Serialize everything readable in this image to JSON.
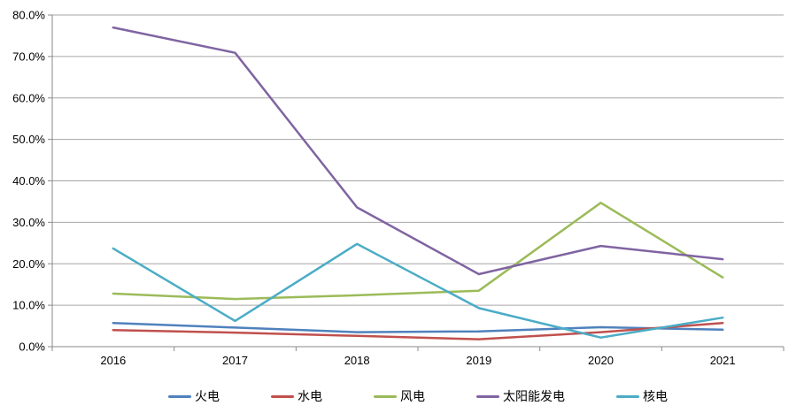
{
  "chart_data": {
    "type": "line",
    "title": "",
    "xlabel": "",
    "ylabel": "",
    "categories": [
      "2016",
      "2017",
      "2018",
      "2019",
      "2020",
      "2021"
    ],
    "series": [
      {
        "id": "thermal-power",
        "name": "火电",
        "color": "#4F81BD",
        "values": [
          5.7,
          4.6,
          3.5,
          3.7,
          4.7,
          4.1
        ]
      },
      {
        "id": "hydro-power",
        "name": "水电",
        "color": "#C0504D",
        "values": [
          4.0,
          3.4,
          2.6,
          1.8,
          3.5,
          5.7
        ]
      },
      {
        "id": "wind-power",
        "name": "风电",
        "color": "#9BBB59",
        "values": [
          12.8,
          11.5,
          12.4,
          13.5,
          34.7,
          16.7
        ]
      },
      {
        "id": "solar-power",
        "name": "太阳能发电",
        "color": "#8064A2",
        "values": [
          77.0,
          70.9,
          33.6,
          17.5,
          24.3,
          21.1
        ]
      },
      {
        "id": "nuclear-power",
        "name": "核电",
        "color": "#4BACC6",
        "values": [
          23.7,
          6.2,
          24.8,
          9.3,
          2.2,
          7.0
        ]
      }
    ],
    "ylim": [
      0,
      80
    ],
    "y_step": 10,
    "y_tick_labels": [
      "0.0%",
      "10.0%",
      "20.0%",
      "30.0%",
      "40.0%",
      "50.0%",
      "60.0%",
      "70.0%",
      "80.0%"
    ],
    "grid": true,
    "legend_position": "bottom",
    "colors": {
      "gridline": "#A6A6A6",
      "axis": "#898989",
      "text": "#000000",
      "background": "#FFFFFF"
    }
  }
}
